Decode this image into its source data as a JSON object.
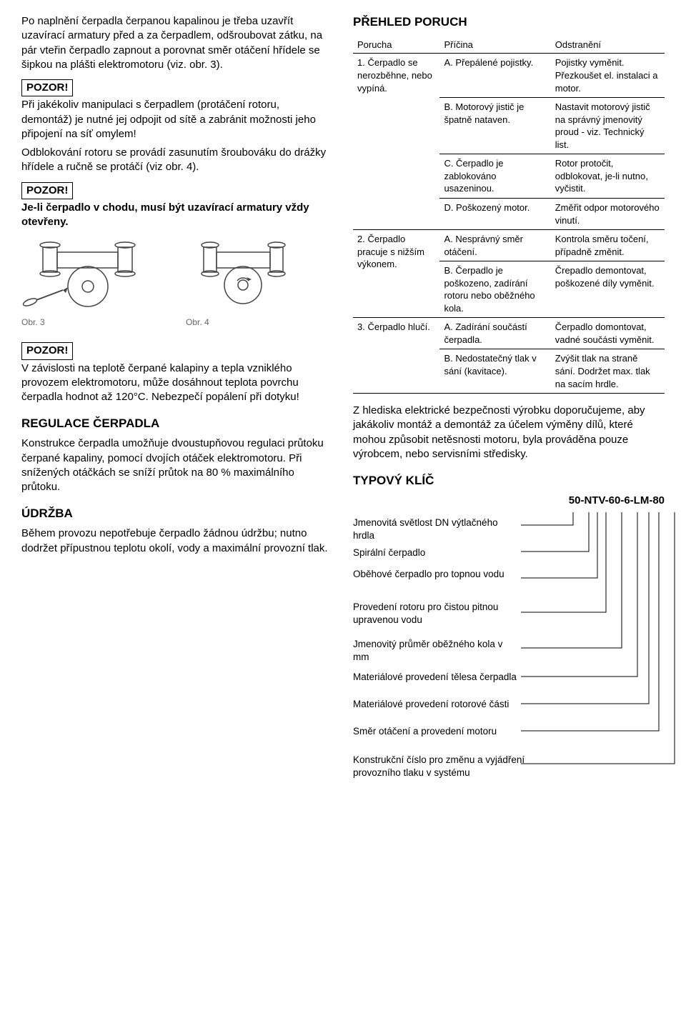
{
  "left": {
    "para1": "Po naplnění čerpadla čerpanou kapalinou je třeba uzavřít uzavírací armatury před a za čerpadlem, odšroubovat zátku, na pár vteřin čerpadlo zapnout a porovnat směr otáčení hřídele se šipkou na plášti elektromotoru (viz. obr. 3).",
    "pozor": "POZOR!",
    "para2": "Při jakékoliv manipulaci s čerpadlem (protáčení rotoru, demontáž) je nutné jej odpojit od sítě a zabránit možnosti jeho připojení na síť omylem!",
    "para3": "Odblokování rotoru se provádí zasunutím šroubováku do drážky hřídele a ručně se protáčí (viz obr. 4).",
    "para4": "Je-li čerpadlo v chodu, musí být uzavírací armatury vždy otevřeny.",
    "fig3": "Obr. 3",
    "fig4": "Obr. 4",
    "para5": "V závislosti na teplotě čerpané kalapiny a tepla vzniklého provozem elektromotoru, může dosáhnout teplota povrchu čerpadla hodnot až 120°C. Nebezpečí popálení při dotyku!",
    "h_regulace": "REGULACE ČERPADLA",
    "para6": "Konstrukce čerpadla umožňuje dvoustupňovou regulaci průtoku čerpané kapaliny, pomocí dvojích otáček elektromotoru. Při snížených otáčkách se sníží průtok na 80 % maximálního průtoku.",
    "h_udrzba": "ÚDRŽBA",
    "para7": "Během provozu nepotřebuje čerpadlo žádnou údržbu; nutno dodržet přípustnou teplotu okolí, vody a maximální provozní tlak."
  },
  "right": {
    "h_prehled": "PŘEHLED PORUCH",
    "table": {
      "headers": [
        "Porucha",
        "Příčina",
        "Odstranění"
      ],
      "rows": [
        {
          "p": "1. Čerpadlo se nerozběhne, nebo vypíná.",
          "c": "A. Přepálené pojistky.",
          "o": "Pojistky vyměnit. Přezkoušet el. instalaci a motor.",
          "pspan": 4
        },
        {
          "c": "B. Motorový jistič je špatně nataven.",
          "o": "Nastavit motorový jistič na správný jmenovitý proud - viz. Technický list."
        },
        {
          "c": "C. Čerpadlo je zablokováno usazeninou.",
          "o": "Rotor protočit, odblokovat, je-li nutno, vyčistit."
        },
        {
          "c": "D. Poškozený motor.",
          "o": "Změřit odpor motorového vinutí."
        },
        {
          "p": "2. Čerpadlo pracuje s nižším výkonem.",
          "c": "A. Nesprávný směr otáčení.",
          "o": "Kontrola směru točení, případně změnit.",
          "pspan": 2
        },
        {
          "c": "B. Čerpadlo je poškozeno, zadírání rotoru nebo oběžného kola.",
          "o": "Črepadlo demontovat, poškozené díly vyměnit."
        },
        {
          "p": "3. Čerpadlo hlučí.",
          "c": "A. Zadírání součástí čerpadla.",
          "o": "Čerpadlo domontovat, vadné součásti vyměnit.",
          "pspan": 2
        },
        {
          "c": "B. Nedostatečný tlak v sání (kavitace).",
          "o": "Zvýšit tlak na straně sání. Dodržet max. tlak na sacím hrdle."
        }
      ]
    },
    "para_safety": "Z hlediska elektrické bezpečnosti výrobku doporučujeme, aby jakákoliv montáž a demontáž za účelem výměny dílů, které mohou způsobit netěsnosti motoru, byla prováděna pouze výrobcem, nebo servisními středisky.",
    "h_typovy": "TYPOVÝ KLÍČ",
    "type_key": "50-NTV-60-6-LM-80",
    "key_labels": [
      "Jmenovitá světlost DN výtlačného hrdla",
      "Spirální čerpadlo",
      "Oběhové čerpadlo pro topnou vodu",
      "Provedení rotoru pro čistou pitnou upravenou vodu",
      "Jmenovitý průměr oběžného kola v mm",
      "Materiálové provedení tělesa čerpadla",
      "Materiálové provedení rotorové části",
      "Směr otáčení a provedení motoru",
      "Konstrukční číslo pro změnu a vyjádření provozního tlaku v systému"
    ]
  }
}
